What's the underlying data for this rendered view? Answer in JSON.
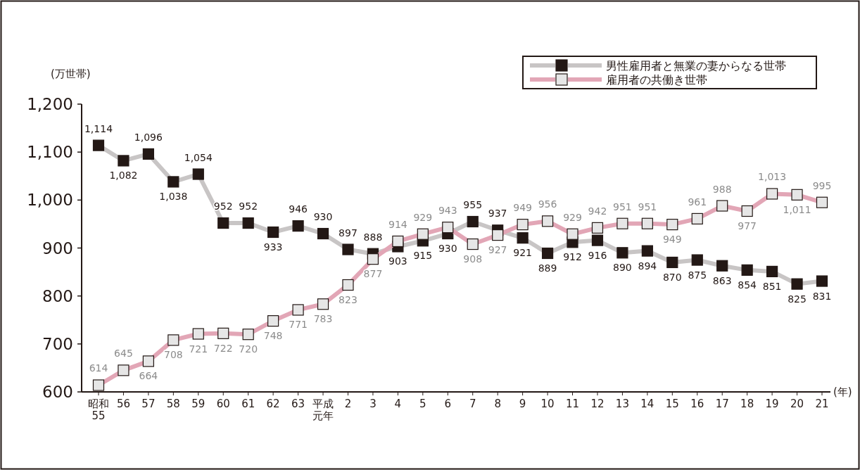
{
  "chart_data": {
    "type": "line",
    "categories": [
      "昭和55",
      "56",
      "57",
      "58",
      "59",
      "60",
      "61",
      "62",
      "63",
      "平成元年",
      "2",
      "3",
      "4",
      "5",
      "6",
      "7",
      "8",
      "9",
      "10",
      "11",
      "12",
      "13",
      "14",
      "15",
      "16",
      "17",
      "18",
      "19",
      "20",
      "21"
    ],
    "series": [
      {
        "name": "男性雇用者と無業の妻からなる世帯",
        "color": "#231815",
        "values": [
          1114,
          1082,
          1096,
          1038,
          1054,
          952,
          952,
          933,
          946,
          930,
          897,
          888,
          903,
          915,
          930,
          955,
          937,
          921,
          889,
          912,
          916,
          890,
          894,
          870,
          875,
          863,
          854,
          851,
          825,
          831
        ],
        "value_labels": [
          "1,114",
          "1,082",
          "1,096",
          "1,038",
          "1,054",
          "952",
          "952",
          "933",
          "946",
          "930",
          "897",
          "888",
          "903",
          "915",
          "930",
          "955",
          "937",
          "921",
          "889",
          "912",
          "916",
          "890",
          "894",
          "870",
          "875",
          "863",
          "854",
          "851",
          "825",
          "831"
        ]
      },
      {
        "name": "雇用者の共働き世帯",
        "color": "#e2a6b6",
        "values": [
          614,
          645,
          664,
          708,
          721,
          722,
          720,
          748,
          771,
          783,
          823,
          877,
          914,
          929,
          943,
          908,
          927,
          949,
          956,
          929,
          942,
          951,
          951,
          949,
          961,
          988,
          977,
          1013,
          1011,
          995
        ],
        "value_labels": [
          "614",
          "645",
          "664",
          "708",
          "721",
          "722",
          "720",
          "748",
          "771",
          "783",
          "823",
          "877",
          "914",
          "929",
          "943",
          "908",
          "927",
          "949",
          "956",
          "929",
          "942",
          "951",
          "951",
          "949",
          "961",
          "988",
          "977",
          "1,013",
          "1,011",
          "995"
        ]
      }
    ],
    "ylim": [
      600,
      1200
    ],
    "yticks": [
      {
        "value": 600,
        "label": "600"
      },
      {
        "value": 700,
        "label": "700"
      },
      {
        "value": 800,
        "label": "800"
      },
      {
        "value": 900,
        "label": "900"
      },
      {
        "value": 1000,
        "label": "1,000"
      },
      {
        "value": 1100,
        "label": "1,100"
      },
      {
        "value": 1200,
        "label": "1,200"
      }
    ],
    "ylabel": "(万世帯)",
    "xlabel": "(年)",
    "marker": "square",
    "legend": "top right",
    "grid": false
  }
}
